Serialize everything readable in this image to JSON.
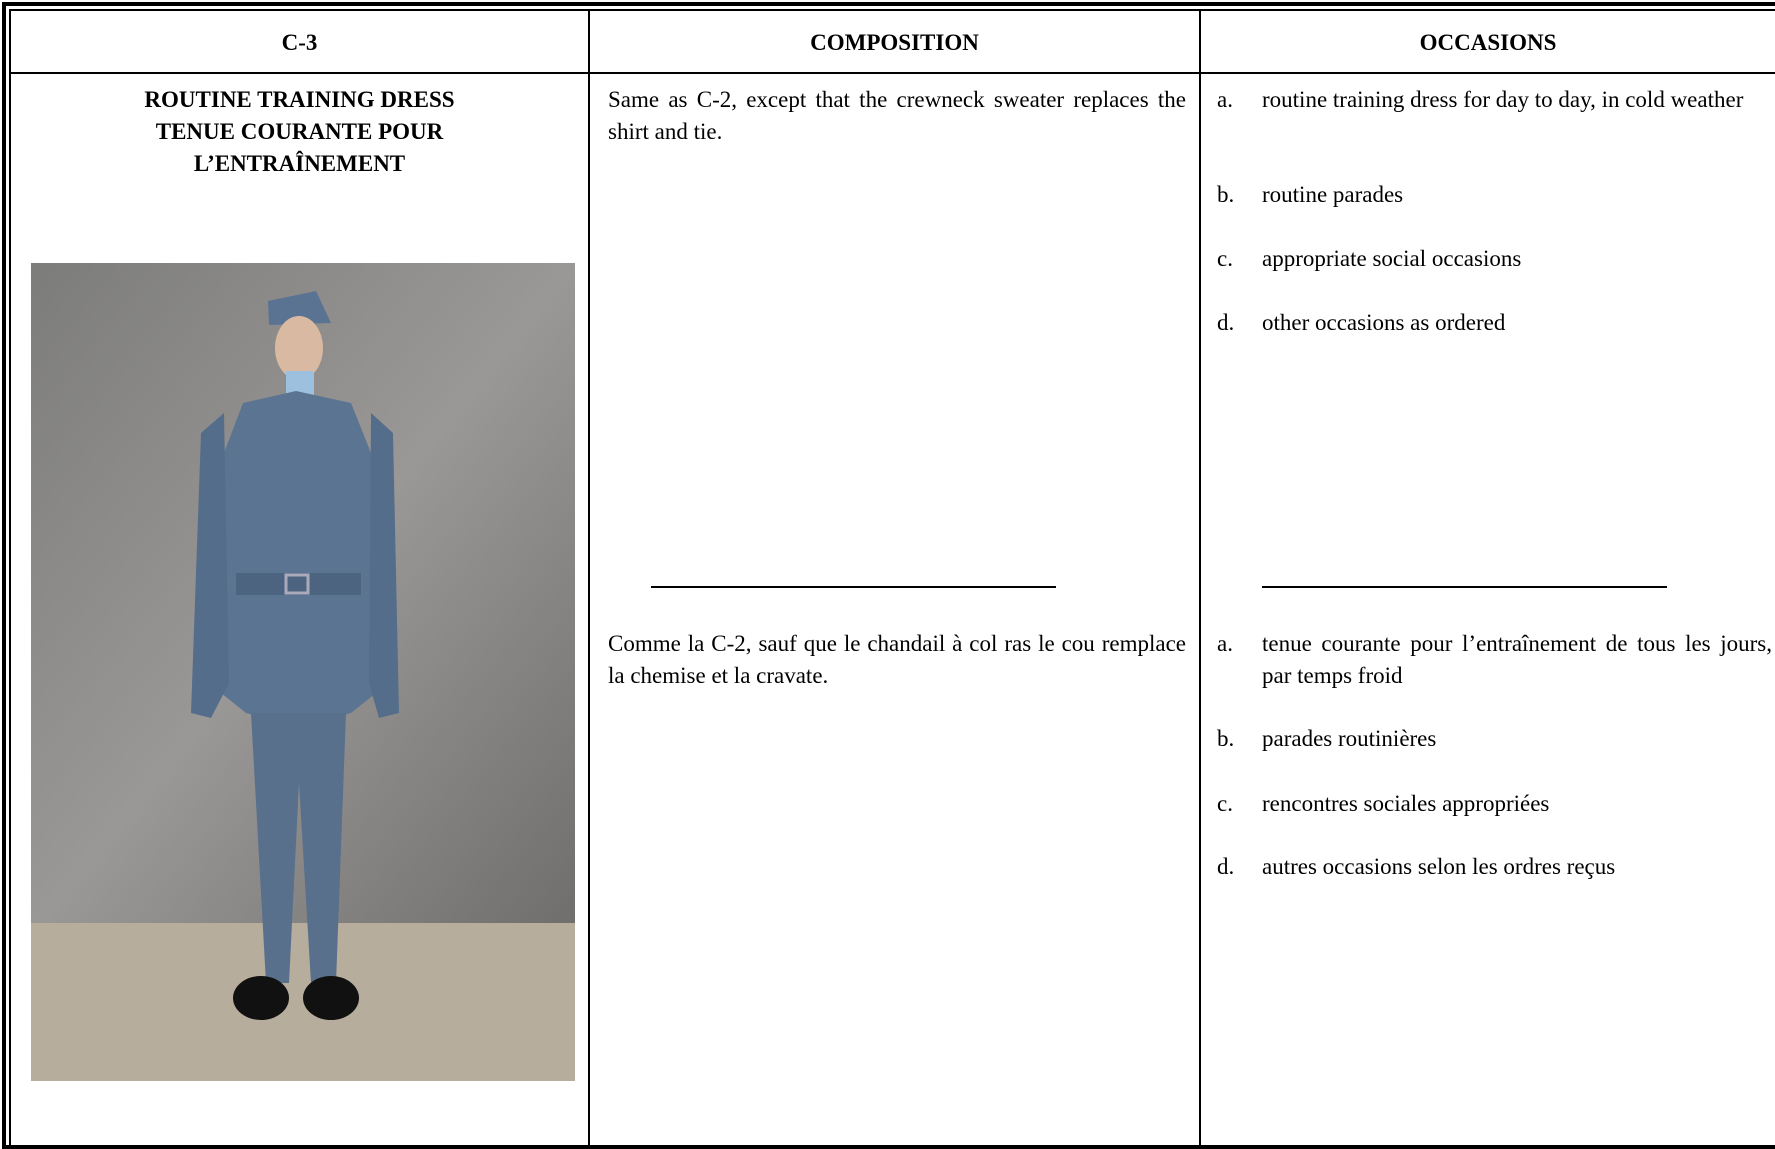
{
  "header": {
    "columns": [
      "C-3",
      "COMPOSITION",
      "OCCASIONS"
    ]
  },
  "row": {
    "title": [
      "ROUTINE TRAINING DRESS",
      "TENUE COURANTE POUR",
      "L’ENTRAÎNEMENT"
    ],
    "composition": {
      "en": "Same as C-2, except that the crewneck sweater replaces the shirt and tie.",
      "fr": "Comme la C-2, sauf que le chandail à col ras le cou remplace la chemise et la cravate."
    },
    "occasions": {
      "en": [
        {
          "letter": "a.",
          "text": "routine training dress for day to day, in cold weather"
        },
        {
          "letter": "b.",
          "text": "routine parades"
        },
        {
          "letter": "c.",
          "text": "appropriate social occasions"
        },
        {
          "letter": "d.",
          "text": "other occasions as ordered"
        }
      ],
      "fr": [
        {
          "letter": "a.",
          "text": "tenue courante pour l’entraînement de tous les jours, par temps froid"
        },
        {
          "letter": "b.",
          "text": "parades routinières"
        },
        {
          "letter": "c.",
          "text": "rencontres sociales appropriées"
        },
        {
          "letter": "d.",
          "text": "autres occasions selon les ordres reçus"
        }
      ]
    }
  }
}
